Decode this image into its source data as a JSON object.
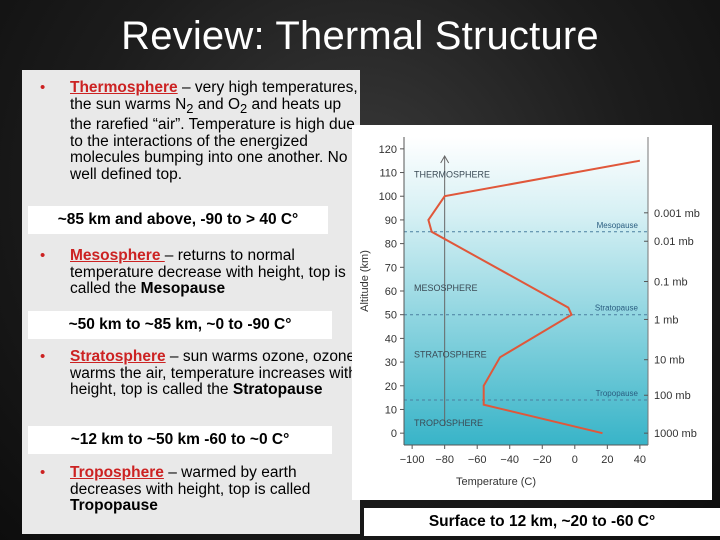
{
  "slide": {
    "title": "Review: Thermal Structure"
  },
  "layers": [
    {
      "term": "Thermosphere",
      "line1_before_sub": "– very high temperatures, the sun warms N",
      "sub1": "2",
      "line_mid": " and O",
      "sub2": "2",
      "line_rest": " and heats up the rarefied “air”. Temperature is high due to the interactions of the energized molecules bumping into one another. No well defined top.",
      "range": "~85 km and above, -90 to > 40 C°"
    },
    {
      "term": "Mesosphere ",
      "text": "– returns to normal temperature decrease with height, top is called the ",
      "bold_end": "Mesopause",
      "range": "~50 km to ~85 km, ~0 to -90 C°"
    },
    {
      "term": "Stratosphere",
      "text": " – sun warms ozone, ozone warms the air, temperature increases with height, top is called the ",
      "bold_end": "Stratopause",
      "range": "~12 km to ~50 km -60 to ~0 C°"
    },
    {
      "term": "Troposphere",
      "text": " – warmed by earth decreases with height, top is called ",
      "bold_end": "Tropopause"
    }
  ],
  "surface_label": "Surface to 12 km, ~20 to -60 C°",
  "bullet_glyph": "•",
  "colors": {
    "term": "#cc2222",
    "curve": "#e0573a",
    "sky_top": "#ffffff",
    "sky_bottom": "#38b4c8"
  },
  "chart_data": {
    "type": "line",
    "xlabel": "Temperature (C)",
    "ylabel": "Altitude (km)",
    "xlim": [
      -105,
      45
    ],
    "ylim": [
      -5,
      125
    ],
    "x_ticks": [
      -100,
      -80,
      -60,
      -40,
      -20,
      0,
      20,
      40
    ],
    "y_ticks": [
      0,
      10,
      20,
      30,
      40,
      50,
      60,
      70,
      80,
      90,
      100,
      110,
      120
    ],
    "series": [
      {
        "points": [
          {
            "x": 17,
            "y": 0
          },
          {
            "x": -56,
            "y": 12
          },
          {
            "x": -56,
            "y": 20
          },
          {
            "x": -46,
            "y": 32
          },
          {
            "x": -2,
            "y": 50
          },
          {
            "x": -4,
            "y": 53
          },
          {
            "x": -88,
            "y": 85
          },
          {
            "x": -90,
            "y": 90
          },
          {
            "x": -80,
            "y": 100
          },
          {
            "x": 40,
            "y": 115
          }
        ]
      }
    ],
    "layer_labels": [
      {
        "text": "THERMOSPHERE",
        "y": 108
      },
      {
        "text": "MESOSPHERE",
        "y": 60
      },
      {
        "text": "STRATOSPHERE",
        "y": 32
      },
      {
        "text": "TROPOSPHERE",
        "y": 3
      }
    ],
    "boundaries": [
      {
        "text": "Mesopause",
        "y": 85
      },
      {
        "text": "Stratopause",
        "y": 50
      },
      {
        "text": "Tropopause",
        "y": 14
      }
    ],
    "pressure_labels": [
      {
        "text": "0.001 mb",
        "y": 93
      },
      {
        "text": "0.01 mb",
        "y": 81
      },
      {
        "text": "0.1 mb",
        "y": 64
      },
      {
        "text": "1 mb",
        "y": 48
      },
      {
        "text": "10 mb",
        "y": 31
      },
      {
        "text": "100 mb",
        "y": 16
      },
      {
        "text": "1000 mb",
        "y": 0
      }
    ]
  }
}
